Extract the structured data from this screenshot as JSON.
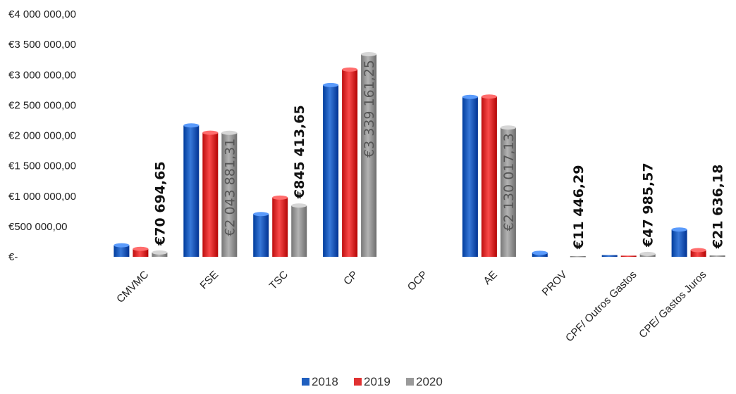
{
  "chart_data": {
    "type": "bar",
    "categories": [
      "CMVMC",
      "FSE",
      "TSC",
      "CP",
      "OCP",
      "AE",
      "PROV",
      "CPF/ Outros Gastos",
      "CPE/ Gastos Juros"
    ],
    "series": [
      {
        "name": "2018",
        "color": "#1f5fbf",
        "values": [
          190000,
          2165000,
          705000,
          2830000,
          0,
          2635000,
          65000,
          28000,
          450000
        ]
      },
      {
        "name": "2019",
        "color": "#e03131",
        "values": [
          130000,
          2045000,
          975000,
          3085000,
          0,
          2640000,
          0,
          18000,
          110000
        ]
      },
      {
        "name": "2020",
        "color": "#9a9a9a",
        "values": [
          70694.65,
          2043881.31,
          845413.65,
          3339161.25,
          0,
          2130017.13,
          11446.29,
          47985.57,
          21636.18
        ]
      }
    ],
    "data_labels": [
      {
        "category_index": 0,
        "text": "€70 694,65",
        "style": "bold-above"
      },
      {
        "category_index": 1,
        "text": "€2 043 881,31",
        "style": "inside"
      },
      {
        "category_index": 2,
        "text": "€845 413,65",
        "style": "bold-above"
      },
      {
        "category_index": 3,
        "text": "€3 339 161,25",
        "style": "inside"
      },
      {
        "category_index": 5,
        "text": "€2 130 017,13",
        "style": "inside"
      },
      {
        "category_index": 6,
        "text": "€11 446,29",
        "style": "bold-above"
      },
      {
        "category_index": 7,
        "text": "€47 985,57",
        "style": "bold-above"
      },
      {
        "category_index": 8,
        "text": "€21 636,18",
        "style": "bold-above"
      }
    ],
    "y_tick_labels": [
      "€-",
      "€500 000,00",
      "€1 000 000,00",
      "€1 500 000,00",
      "€2 000 000,00",
      "€2 500 000,00",
      "€3 000 000,00",
      "€3 500 000,00",
      "€4 000 000,00"
    ],
    "ylim": [
      0,
      4000000
    ],
    "grid": false,
    "legend_position": "bottom"
  }
}
